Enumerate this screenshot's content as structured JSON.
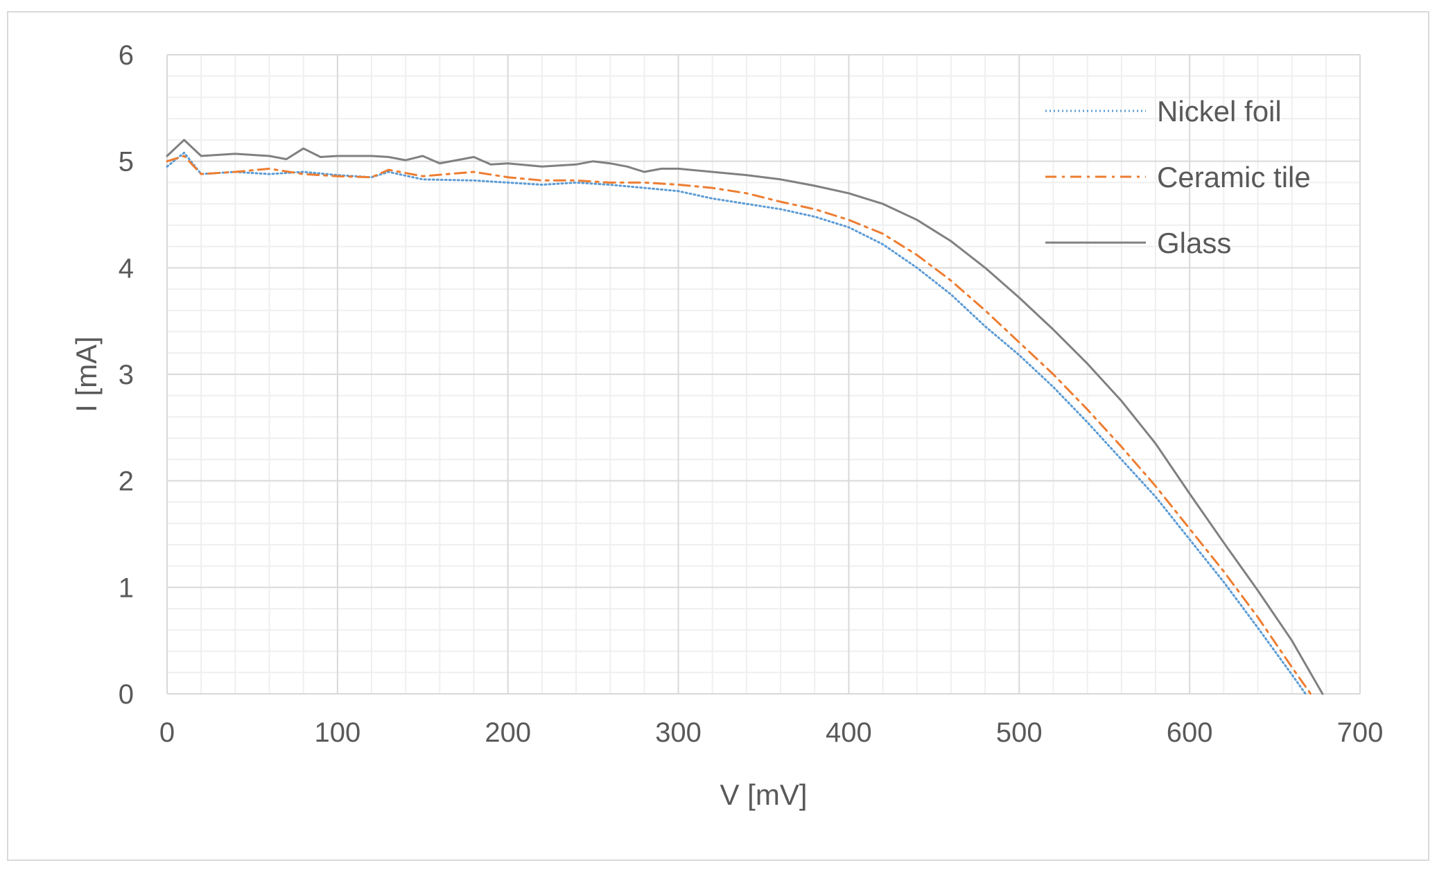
{
  "chart_data": {
    "type": "line",
    "title": "",
    "xlabel": "V [mV]",
    "ylabel": "I [mA]",
    "xlim": [
      0,
      700
    ],
    "ylim": [
      0,
      6
    ],
    "x_ticks": [
      "0",
      "100",
      "200",
      "300",
      "400",
      "500",
      "600",
      "700"
    ],
    "y_ticks": [
      "0",
      "1",
      "2",
      "3",
      "4",
      "5",
      "6"
    ],
    "grid": "major and minor, both axes",
    "legend_position": "top-right, inside plot",
    "series": [
      {
        "name": "Nickel foil",
        "style": "dotted",
        "color": "#5b9bd5",
        "x": [
          0,
          10,
          20,
          40,
          60,
          80,
          100,
          120,
          130,
          150,
          180,
          200,
          220,
          240,
          260,
          280,
          300,
          320,
          340,
          360,
          380,
          400,
          420,
          440,
          460,
          480,
          500,
          520,
          540,
          560,
          580,
          600,
          620,
          640,
          660,
          668
        ],
        "y": [
          4.95,
          5.08,
          4.88,
          4.9,
          4.88,
          4.9,
          4.87,
          4.85,
          4.9,
          4.83,
          4.82,
          4.8,
          4.78,
          4.8,
          4.78,
          4.75,
          4.72,
          4.65,
          4.6,
          4.55,
          4.48,
          4.38,
          4.22,
          4.0,
          3.75,
          3.45,
          3.18,
          2.88,
          2.55,
          2.2,
          1.85,
          1.45,
          1.05,
          0.62,
          0.18,
          0
        ]
      },
      {
        "name": "Ceramic tile",
        "style": "dash-dot",
        "color": "#ed7d31",
        "x": [
          0,
          10,
          20,
          40,
          60,
          80,
          100,
          120,
          130,
          150,
          180,
          200,
          220,
          240,
          260,
          280,
          300,
          320,
          340,
          360,
          380,
          400,
          420,
          440,
          460,
          480,
          500,
          520,
          540,
          560,
          580,
          600,
          620,
          640,
          660,
          671
        ],
        "y": [
          5.0,
          5.05,
          4.88,
          4.9,
          4.93,
          4.88,
          4.86,
          4.85,
          4.92,
          4.86,
          4.9,
          4.85,
          4.82,
          4.82,
          4.8,
          4.8,
          4.78,
          4.75,
          4.7,
          4.62,
          4.55,
          4.45,
          4.32,
          4.12,
          3.88,
          3.6,
          3.3,
          3.0,
          2.67,
          2.32,
          1.95,
          1.55,
          1.15,
          0.72,
          0.25,
          0
        ]
      },
      {
        "name": "Glass",
        "style": "solid",
        "color": "#808080",
        "x": [
          0,
          10,
          20,
          40,
          60,
          70,
          80,
          90,
          100,
          120,
          130,
          140,
          150,
          160,
          180,
          190,
          200,
          220,
          240,
          250,
          260,
          270,
          280,
          290,
          300,
          320,
          340,
          360,
          380,
          400,
          420,
          440,
          460,
          480,
          500,
          520,
          540,
          560,
          580,
          600,
          620,
          640,
          660,
          678
        ],
        "y": [
          5.05,
          5.2,
          5.05,
          5.07,
          5.05,
          5.02,
          5.12,
          5.04,
          5.05,
          5.05,
          5.04,
          5.01,
          5.05,
          4.98,
          5.04,
          4.97,
          4.98,
          4.95,
          4.97,
          5.0,
          4.98,
          4.95,
          4.9,
          4.93,
          4.93,
          4.9,
          4.87,
          4.83,
          4.77,
          4.7,
          4.6,
          4.45,
          4.25,
          4.0,
          3.72,
          3.42,
          3.1,
          2.75,
          2.35,
          1.88,
          1.42,
          0.97,
          0.5,
          0
        ]
      }
    ]
  }
}
